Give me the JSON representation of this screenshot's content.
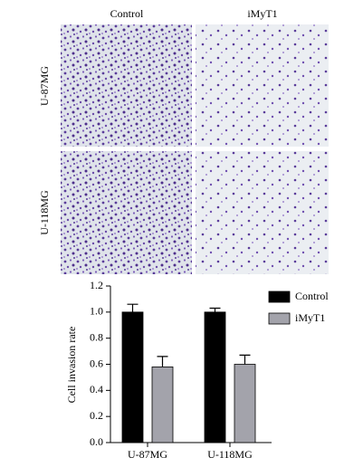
{
  "image_panel": {
    "column_labels": [
      "Control",
      "iMyT1"
    ],
    "row_labels": [
      "U-87MG",
      "U-118MG"
    ]
  },
  "chart_data": {
    "type": "bar",
    "y_label": "Cell invasion rate",
    "categories": [
      "U-87MG",
      "U-118MG"
    ],
    "series": [
      {
        "name": "Control",
        "color": "#000000",
        "values": [
          1.0,
          1.0
        ],
        "errors": [
          0.06,
          0.03
        ]
      },
      {
        "name": "iMyT1",
        "color": "#a3a3ab",
        "values": [
          0.58,
          0.6
        ],
        "errors": [
          0.08,
          0.07
        ]
      }
    ],
    "ylim": [
      0,
      1.2
    ],
    "yticks": [
      {
        "value": 0,
        "label": "0.0"
      },
      0.2,
      0.4,
      0.6,
      0.8,
      {
        "value": 1,
        "label": "1.0"
      },
      1.2
    ],
    "legend": "right"
  }
}
